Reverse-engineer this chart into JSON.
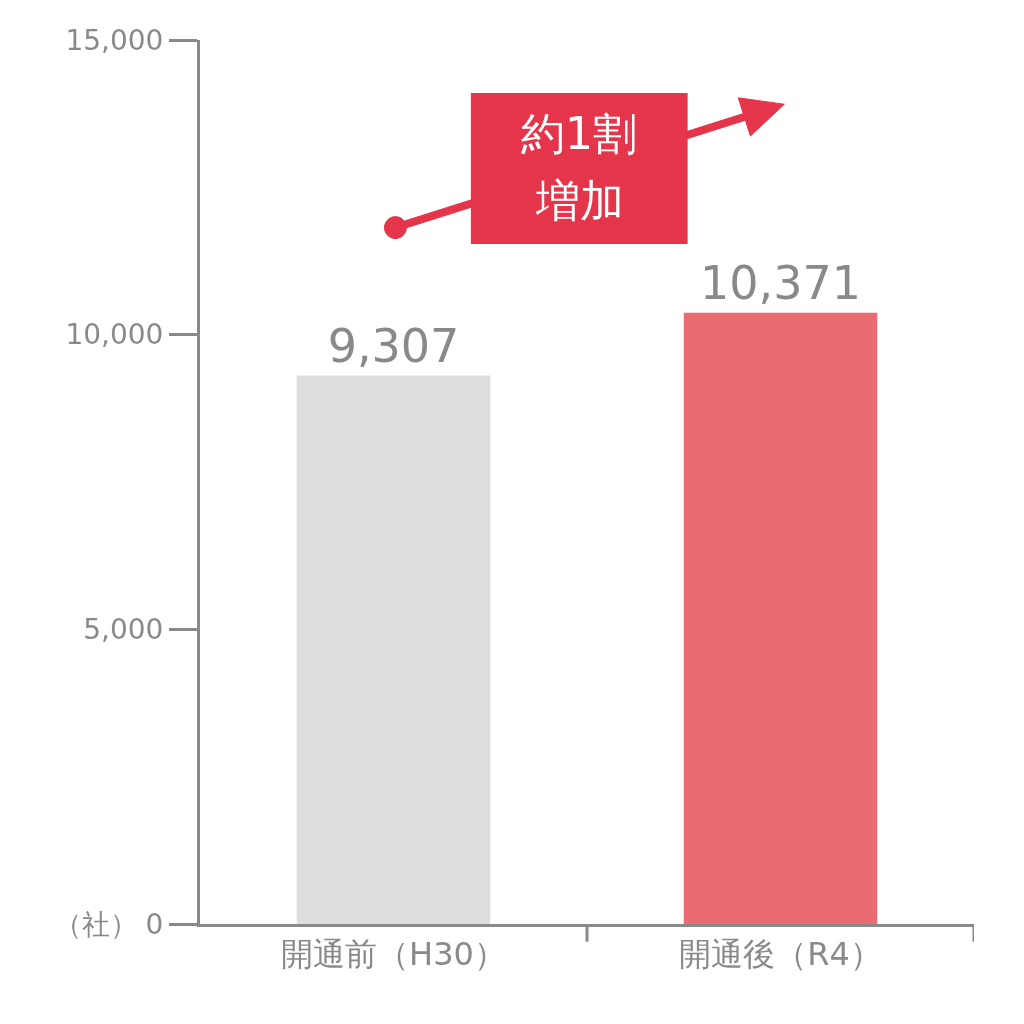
{
  "chart_data": {
    "type": "bar",
    "categories": [
      "開通前（H30）",
      "開通後（R4）"
    ],
    "values": [
      9307,
      10371
    ],
    "colors": [
      "#dcdddd",
      "#eb6b72"
    ],
    "value_labels": [
      "9,307",
      "10,371"
    ],
    "ylabel": "（社）",
    "ylim": [
      0,
      15000
    ],
    "yticks": [
      0,
      {
        "value": 5000,
        "label": "5,000"
      },
      {
        "value": 10000,
        "label": "10,000"
      },
      {
        "value": 15000,
        "label": "15,000"
      }
    ],
    "annotations": [
      "約1割",
      "増加"
    ]
  }
}
